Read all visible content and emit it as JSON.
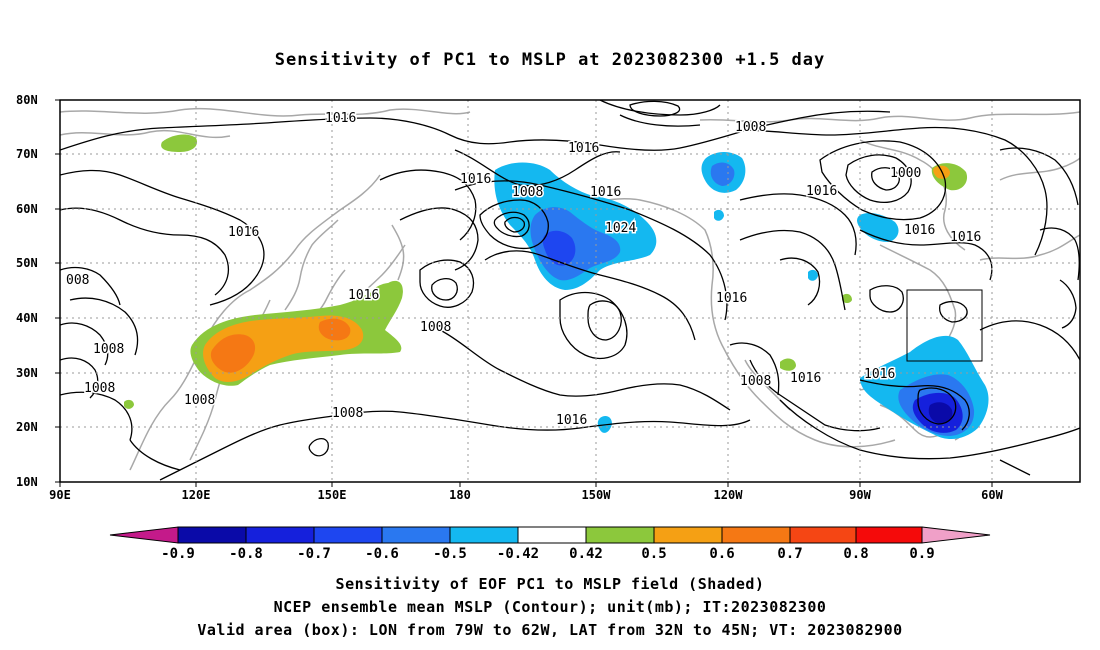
{
  "title": "Sensitivity of PC1 to MSLP at 2023082300 +1.5 day",
  "axes": {
    "lat_labels": [
      "80N",
      "70N",
      "60N",
      "50N",
      "40N",
      "30N",
      "20N",
      "10N"
    ],
    "lon_labels": [
      "90E",
      "120E",
      "150E",
      "180",
      "150W",
      "120W",
      "90W",
      "60W"
    ]
  },
  "contour_labels": [
    "1016",
    "1008",
    "1016",
    "1000",
    "1016",
    "1016",
    "1008",
    "1016",
    "1016",
    "1024",
    "1016",
    "1016",
    "008",
    "1008",
    "1008",
    "1008",
    "1008",
    "1016",
    "1008",
    "1016",
    "1016",
    "1008",
    "1016",
    "1016",
    "1008"
  ],
  "colorbar": {
    "ticks": [
      "-0.9",
      "-0.8",
      "-0.7",
      "-0.6",
      "-0.5",
      "-0.42",
      "0.42",
      "0.5",
      "0.6",
      "0.7",
      "0.8",
      "0.9"
    ],
    "colors": [
      "#c41a8a",
      "#0a0aa8",
      "#1520dc",
      "#1e46f0",
      "#2a78f0",
      "#14b8f0",
      "#ffffff",
      "#8cc83c",
      "#f5a014",
      "#f57814",
      "#f54614",
      "#f50a0a",
      "#f0a0c8"
    ]
  },
  "captions": [
    "Sensitivity of EOF PC1 to MSLP field (Shaded)",
    "NCEP ensemble mean MSLP (Contour); unit(mb); IT:2023082300",
    "Valid area (box): LON from 79W to 62W, LAT from 32N to 45N; VT: 2023082900"
  ]
}
